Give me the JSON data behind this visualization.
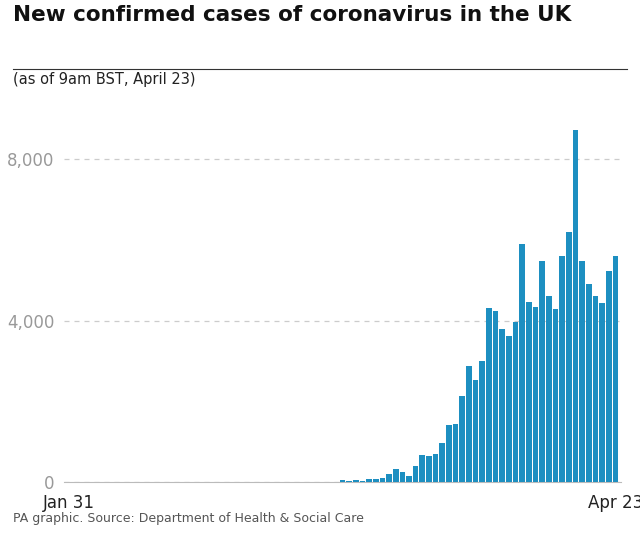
{
  "title": "New confirmed cases of coronavirus in the UK",
  "subtitle": "(as of 9am BST, April 23)",
  "caption": "PA graphic. Source: Department of Health & Social Care",
  "bar_color": "#1d8fc1",
  "background_color": "#ffffff",
  "yticks": [
    0,
    4000,
    8000
  ],
  "xlabel_left": "Jan 31",
  "xlabel_right": "Apr 23",
  "ylim": [
    0,
    9500
  ],
  "title_line_color": "#333333",
  "grid_color": "#cccccc",
  "tick_color": "#999999",
  "values": [
    2,
    1,
    0,
    0,
    0,
    1,
    0,
    0,
    0,
    0,
    0,
    0,
    0,
    0,
    0,
    0,
    0,
    0,
    0,
    0,
    0,
    0,
    0,
    0,
    0,
    1,
    0,
    0,
    0,
    0,
    0,
    1,
    2,
    0,
    1,
    0,
    0,
    2,
    5,
    12,
    10,
    48,
    45,
    69,
    43,
    73,
    77,
    114,
    208,
    342,
    251,
    152,
    407,
    676,
    643,
    714,
    967,
    1427,
    1452,
    2129,
    2885,
    2546,
    3009,
    4324,
    4244,
    3802,
    3634,
    3965,
    5903,
    4457,
    4344,
    5492,
    4615,
    4301,
    5599,
    6201,
    8719,
    5492,
    4913,
    4617,
    4451,
    5233,
    5614
  ]
}
